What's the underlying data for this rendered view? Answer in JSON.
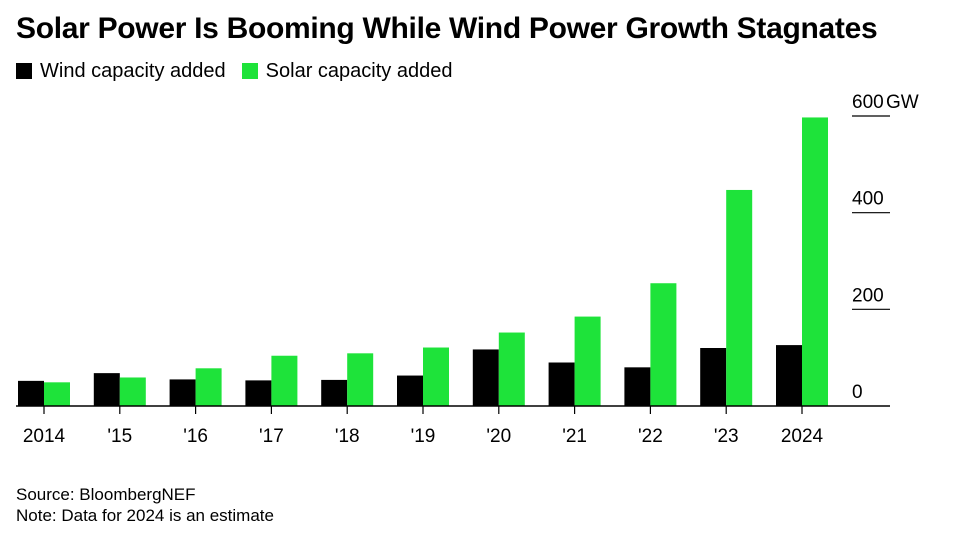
{
  "chart_data": {
    "type": "bar",
    "title": "Solar Power Is Booming While Wind Power Growth Stagnates",
    "categories": [
      "2014",
      "'15",
      "'16",
      "'17",
      "'18",
      "'19",
      "'20",
      "'21",
      "'22",
      "'23",
      "2024"
    ],
    "series": [
      {
        "name": "Wind capacity added",
        "color": "#000000",
        "values": [
          52,
          68,
          55,
          53,
          54,
          63,
          117,
          90,
          80,
          120,
          126
        ]
      },
      {
        "name": "Solar capacity added",
        "color": "#1ee33a",
        "values": [
          49,
          59,
          78,
          104,
          109,
          121,
          152,
          185,
          254,
          447,
          597
        ]
      }
    ],
    "ylim": [
      0,
      600
    ],
    "yticks": [
      0,
      200,
      400,
      600
    ],
    "yunit": "GW",
    "legend": "top-left"
  },
  "footer": {
    "source": "Source: BloombergNEF",
    "note": "Note: Data for 2024 is an estimate"
  }
}
